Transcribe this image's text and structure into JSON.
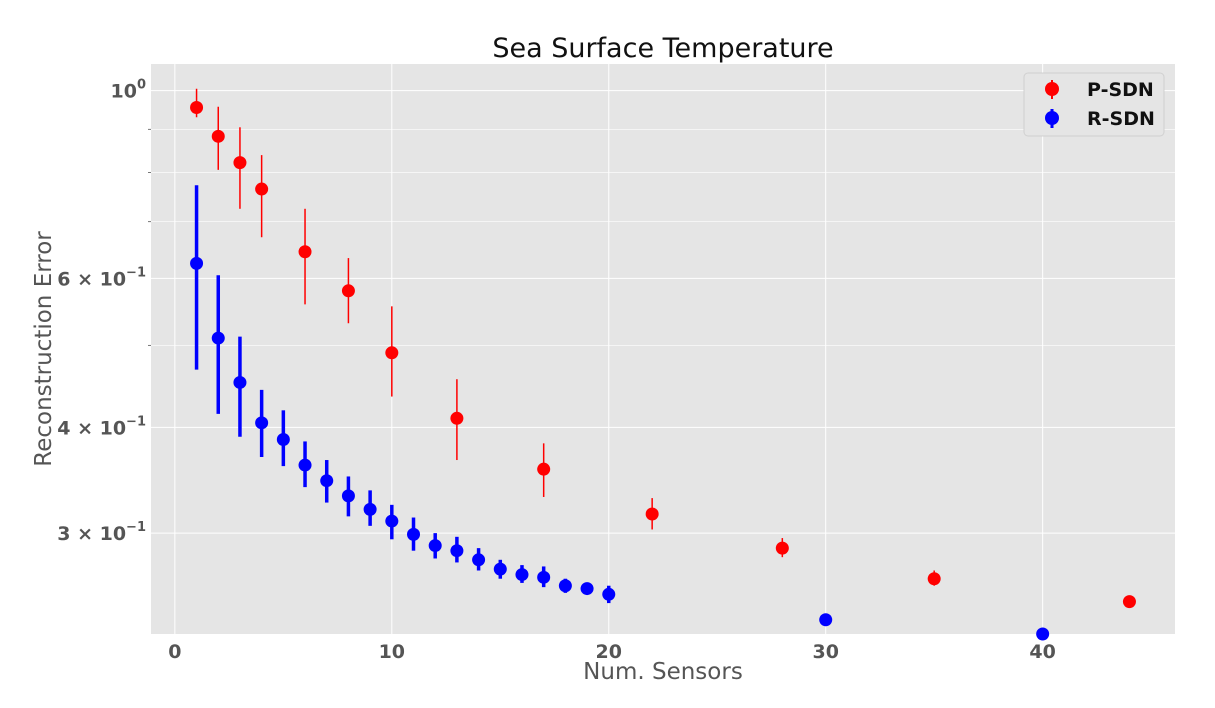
{
  "chart_data": {
    "type": "scatter",
    "title": "Sea Surface Temperature",
    "xlabel": "Num. Sensors",
    "ylabel": "Reconstruction Error",
    "yscale": "log",
    "xlim": [
      -1.1,
      46.1
    ],
    "ylim": [
      0.228,
      1.075
    ],
    "grid": true,
    "legend_position": "top-right",
    "x_ticks": [
      0,
      10,
      20,
      30,
      40
    ],
    "x_tick_labels": [
      "0",
      "10",
      "20",
      "30",
      "40"
    ],
    "y_ticks": [
      {
        "value": 1.0,
        "base": "10",
        "exp": "0"
      },
      {
        "value": 0.6,
        "base": "6 × 10",
        "exp": "−1"
      },
      {
        "value": 0.4,
        "base": "4 × 10",
        "exp": "−1"
      },
      {
        "value": 0.3,
        "base": "3 × 10",
        "exp": "−1"
      }
    ],
    "series": [
      {
        "name": "P-SDN",
        "color": "#ff0000",
        "points": [
          {
            "x": 1,
            "y": 0.955,
            "lo": 0.93,
            "hi": 1.005
          },
          {
            "x": 2,
            "y": 0.883,
            "lo": 0.806,
            "hi": 0.957
          },
          {
            "x": 3,
            "y": 0.822,
            "lo": 0.725,
            "hi": 0.905
          },
          {
            "x": 4,
            "y": 0.765,
            "lo": 0.671,
            "hi": 0.839
          },
          {
            "x": 6,
            "y": 0.645,
            "lo": 0.559,
            "hi": 0.725
          },
          {
            "x": 8,
            "y": 0.58,
            "lo": 0.531,
            "hi": 0.634
          },
          {
            "x": 10,
            "y": 0.49,
            "lo": 0.435,
            "hi": 0.556
          },
          {
            "x": 13,
            "y": 0.41,
            "lo": 0.366,
            "hi": 0.456
          },
          {
            "x": 17,
            "y": 0.357,
            "lo": 0.331,
            "hi": 0.383
          },
          {
            "x": 22,
            "y": 0.316,
            "lo": 0.303,
            "hi": 0.33
          },
          {
            "x": 28,
            "y": 0.288,
            "lo": 0.281,
            "hi": 0.296
          },
          {
            "x": 35,
            "y": 0.265,
            "lo": 0.26,
            "hi": 0.271
          },
          {
            "x": 44,
            "y": 0.249
          }
        ]
      },
      {
        "name": "R-SDN",
        "color": "#0000ff",
        "points": [
          {
            "x": 1,
            "y": 0.625,
            "lo": 0.468,
            "hi": 0.773
          },
          {
            "x": 2,
            "y": 0.51,
            "lo": 0.415,
            "hi": 0.605
          },
          {
            "x": 3,
            "y": 0.452,
            "lo": 0.39,
            "hi": 0.512
          },
          {
            "x": 4,
            "y": 0.405,
            "lo": 0.369,
            "hi": 0.443
          },
          {
            "x": 5,
            "y": 0.387,
            "lo": 0.36,
            "hi": 0.419
          },
          {
            "x": 6,
            "y": 0.361,
            "lo": 0.34,
            "hi": 0.385
          },
          {
            "x": 7,
            "y": 0.346,
            "lo": 0.326,
            "hi": 0.366
          },
          {
            "x": 8,
            "y": 0.332,
            "lo": 0.314,
            "hi": 0.35
          },
          {
            "x": 9,
            "y": 0.32,
            "lo": 0.306,
            "hi": 0.337
          },
          {
            "x": 10,
            "y": 0.31,
            "lo": 0.295,
            "hi": 0.324
          },
          {
            "x": 11,
            "y": 0.299,
            "lo": 0.286,
            "hi": 0.313
          },
          {
            "x": 12,
            "y": 0.29,
            "lo": 0.28,
            "hi": 0.3
          },
          {
            "x": 13,
            "y": 0.286,
            "lo": 0.277,
            "hi": 0.297
          },
          {
            "x": 14,
            "y": 0.279,
            "lo": 0.271,
            "hi": 0.288
          },
          {
            "x": 15,
            "y": 0.272,
            "lo": 0.265,
            "hi": 0.279
          },
          {
            "x": 16,
            "y": 0.268,
            "lo": 0.262,
            "hi": 0.275
          },
          {
            "x": 17,
            "y": 0.266,
            "lo": 0.259,
            "hi": 0.274
          },
          {
            "x": 18,
            "y": 0.26,
            "lo": 0.255,
            "hi": 0.265
          },
          {
            "x": 19,
            "y": 0.258,
            "lo": 0.254,
            "hi": 0.262
          },
          {
            "x": 20,
            "y": 0.254,
            "lo": 0.248,
            "hi": 0.26
          },
          {
            "x": 30,
            "y": 0.237,
            "lo": 0.234,
            "hi": 0.24
          },
          {
            "x": 40,
            "y": 0.228
          }
        ]
      }
    ]
  }
}
